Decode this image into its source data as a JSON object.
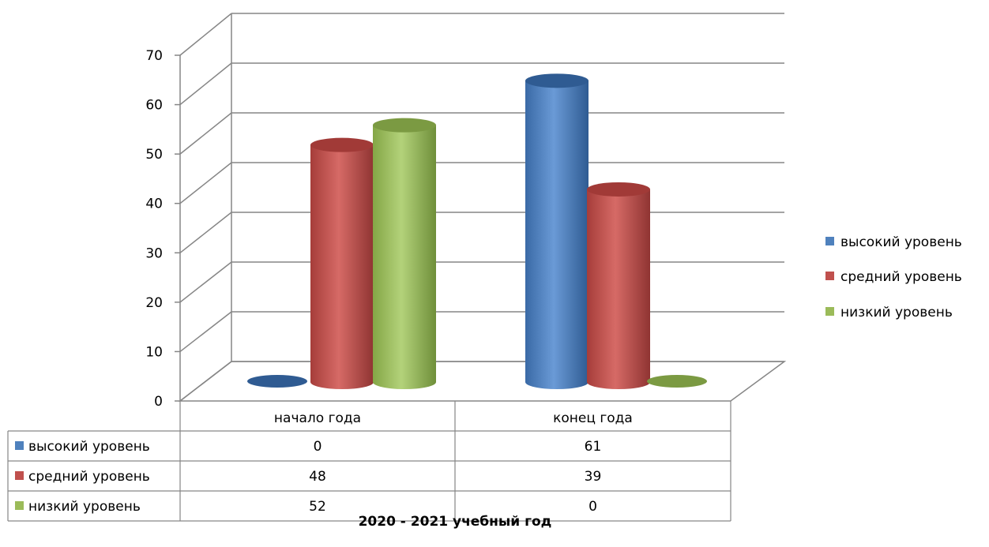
{
  "chart_data": {
    "type": "bar",
    "categories": [
      "начало года",
      "конец года"
    ],
    "series": [
      {
        "name": "высокий уровень",
        "values": [
          0,
          61
        ],
        "color": "#4F81BD"
      },
      {
        "name": "средний уровень",
        "values": [
          48,
          39
        ],
        "color": "#C0504D"
      },
      {
        "name": "низкий уровень",
        "values": [
          52,
          0
        ],
        "color": "#9BBB59"
      }
    ],
    "xlabel": "2020 - 2021 учебный год",
    "ylim": [
      0,
      70
    ],
    "yticks": [
      0,
      10,
      20,
      30,
      40,
      50,
      60,
      70
    ],
    "grid": true,
    "legend": "right",
    "data_table": true,
    "style": "3d-cylinder"
  }
}
